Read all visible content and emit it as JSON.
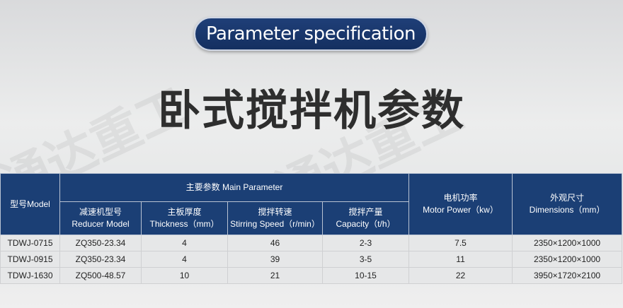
{
  "header": {
    "badge": "Parameter specification",
    "title": "卧式搅拌机参数"
  },
  "table": {
    "model_header": "型号Model",
    "main_param_header": "主要参数 Main Parameter",
    "sub_headers": [
      {
        "cn": "减速机型号",
        "en": "Reducer Model"
      },
      {
        "cn": "主板厚度",
        "en": "Thickness（mm）"
      },
      {
        "cn": "搅拌转速",
        "en": "Stirring Speed（r/min）"
      },
      {
        "cn": "搅拌产量",
        "en": "Capacity（t/h）"
      }
    ],
    "motor_header": {
      "cn": "电机功率",
      "en": "Motor Power（kw）"
    },
    "dim_header": {
      "cn": "外观尺寸",
      "en": "Dimensions（mm）"
    },
    "rows": [
      [
        "TDWJ-0715",
        "ZQ350-23.34",
        "4",
        "46",
        "2-3",
        "7.5",
        "2350×1200×1000"
      ],
      [
        "TDWJ-0915",
        "ZQ350-23.34",
        "4",
        "39",
        "3-5",
        "11",
        "2350×1200×1000"
      ],
      [
        "TDWJ-1630",
        "ZQ500-48.57",
        "10",
        "21",
        "10-15",
        "22",
        "3950×1720×2100"
      ]
    ]
  },
  "colors": {
    "header_bg": "#1b3f75",
    "title": "#2e2e2e"
  }
}
